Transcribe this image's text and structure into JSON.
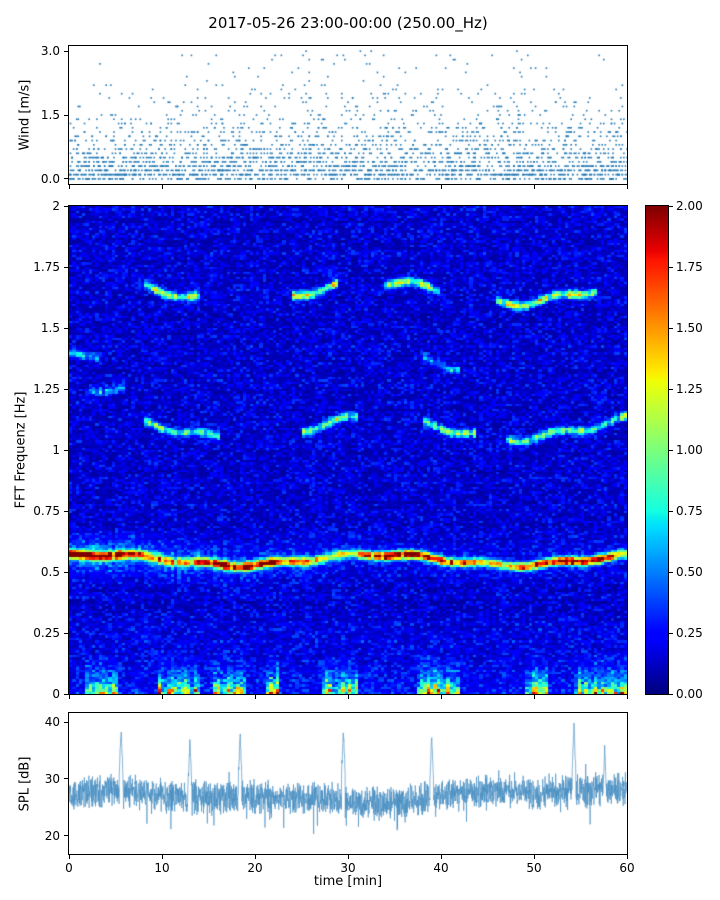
{
  "title": "2017-05-26 23:00-00:00 (250.00_Hz)",
  "xaxis": {
    "label": "time [min]",
    "lim": [
      0,
      60
    ],
    "ticks": [
      0,
      10,
      20,
      30,
      40,
      50,
      60
    ],
    "tick_labels": [
      "0",
      "10",
      "20",
      "30",
      "40",
      "50",
      "60"
    ]
  },
  "chart_data": [
    {
      "type": "scatter",
      "name": "wind-speed",
      "ylabel": "Wind [m/s]",
      "ylim": [
        0,
        3.0
      ],
      "yticks": [
        0.0,
        1.5,
        3.0
      ],
      "ytick_labels": [
        "0.0",
        "1.5",
        "3.0"
      ],
      "marker_color": "#1f77b4",
      "n_points": 2800,
      "quantize_step_ms": 0.1,
      "time_step_min": 0.167,
      "mean_speed_ms": 0.6,
      "max_speed_ms": 3.0,
      "description": "Dense scatter of quantised wind speeds over one hour; bulk of points 0-1.5 m/s in discrete 0.1 m/s rows, sparse points up to ~3 m/s, slightly more high values after minute 25"
    },
    {
      "type": "heatmap",
      "name": "fft-spectrogram",
      "ylabel": "FFT Frequenz [Hz]",
      "ylim": [
        0,
        2
      ],
      "yticks": [
        0,
        0.25,
        0.5,
        0.75,
        1,
        1.25,
        1.5,
        1.75,
        2
      ],
      "ytick_labels": [
        "0",
        "0.25",
        "0.5",
        "0.75",
        "1",
        "1.25",
        "1.5",
        "1.75",
        "2"
      ],
      "colormap": "jet",
      "clim": [
        0,
        2
      ],
      "colorbar_tick_labels": [
        "0.00",
        "0.25",
        "0.50",
        "0.75",
        "1.00",
        "1.25",
        "1.50",
        "1.75",
        "2.00"
      ],
      "background_level": 0.15,
      "main_band": {
        "center_freq_hz": 0.55,
        "freq_wobble_hz": 0.03,
        "width_hz": 0.012,
        "peak_value": 2.0,
        "note": "continuous bright red/yellow ridge across the full hour, slowly undulating between ~0.52 and ~0.58 Hz, widest/brightest near minutes 0-6"
      },
      "secondary_bands": [
        {
          "freq_hz": 1.09,
          "value": 0.9,
          "active_minutes": [
            [
              8,
              16
            ],
            [
              25,
              31
            ],
            [
              38,
              44
            ],
            [
              47,
              60
            ]
          ]
        },
        {
          "freq_hz": 1.21,
          "value": 0.5,
          "active_minutes": [
            [
              2,
              6
            ]
          ]
        },
        {
          "freq_hz": 1.35,
          "value": 0.45,
          "active_minutes": [
            [
              0,
              3
            ],
            [
              38,
              42
            ]
          ]
        },
        {
          "freq_hz": 1.65,
          "value": 1.1,
          "active_minutes": [
            [
              8,
              14
            ],
            [
              24,
              29
            ],
            [
              34,
              40
            ],
            [
              46,
              57
            ]
          ]
        }
      ],
      "low_freq_bursts": {
        "freq_range_hz": [
          0,
          0.14
        ],
        "peak_value": 2.0,
        "active_minutes": [
          [
            1.5,
            5
          ],
          [
            9.5,
            14
          ],
          [
            15.5,
            19
          ],
          [
            21,
            22.5
          ],
          [
            27,
            31
          ],
          [
            37.5,
            42
          ],
          [
            49,
            51.5
          ],
          [
            54.5,
            60
          ]
        ],
        "note": "intermittent green/yellow/red vertical smears near 0 Hz"
      }
    },
    {
      "type": "line",
      "name": "spl",
      "ylabel": "SPL [dB]",
      "ylim": [
        17,
        41
      ],
      "yticks": [
        20,
        30,
        40
      ],
      "ytick_labels": [
        "20",
        "30",
        "40"
      ],
      "line_color": "#4a8fc2",
      "baseline_db": 27.3,
      "noise_band_db": [
        22,
        33
      ],
      "dip_minutes": [
        25,
        35
      ],
      "spikes": [
        {
          "t_min": 5.6,
          "db": 39.5
        },
        {
          "t_min": 13.0,
          "db": 37.5
        },
        {
          "t_min": 18.4,
          "db": 38.5
        },
        {
          "t_min": 29.5,
          "db": 39.5
        },
        {
          "t_min": 39.0,
          "db": 38.5
        },
        {
          "t_min": 54.3,
          "db": 40.0
        },
        {
          "t_min": 57.6,
          "db": 36.0
        }
      ],
      "description": "Noisy sound-pressure-level trace oscillating ~22-33 dB with narrow upward spikes approaching 40 dB"
    }
  ]
}
